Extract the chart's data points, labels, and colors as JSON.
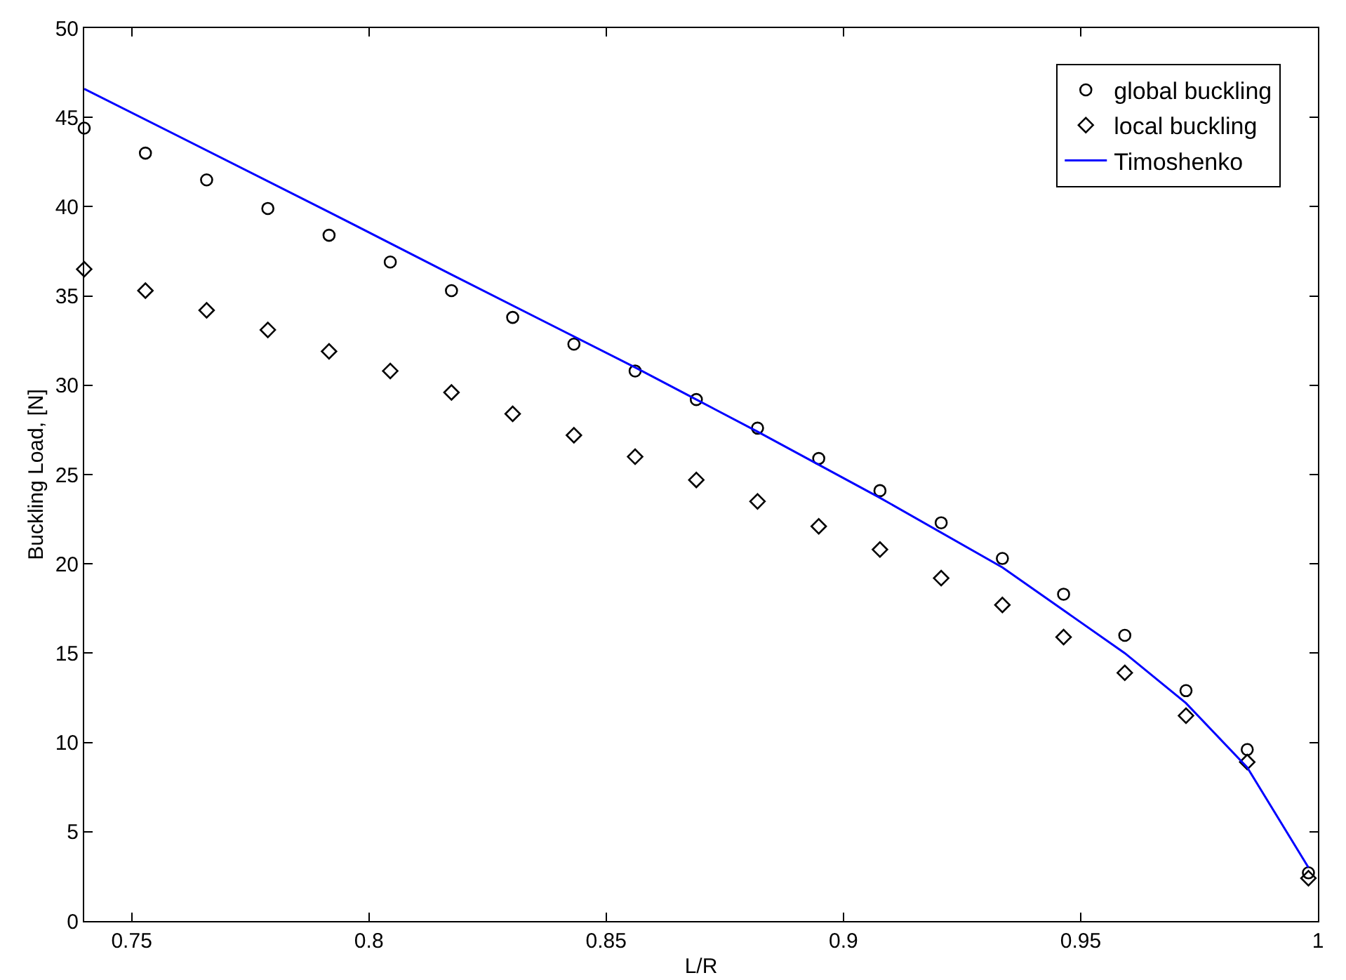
{
  "chart_data": {
    "type": "scatter",
    "xlabel": "L/R",
    "ylabel": "Buckling Load, [N]",
    "x": [
      0.74,
      0.7529,
      0.7658,
      0.7787,
      0.7916,
      0.8045,
      0.8174,
      0.8303,
      0.8432,
      0.8561,
      0.869,
      0.8819,
      0.8948,
      0.9077,
      0.9206,
      0.9335,
      0.9464,
      0.9593,
      0.9722,
      0.9851,
      0.998
    ],
    "series": [
      {
        "name": "global buckling",
        "color": "#000000",
        "marker": "circle",
        "values": [
          44.4,
          43,
          41.5,
          39.9,
          38.4,
          36.9,
          35.3,
          33.8,
          32.3,
          30.8,
          29.2,
          27.6,
          25.9,
          24.1,
          22.3,
          20.3,
          18.3,
          16,
          12.9,
          9.6,
          2.7
        ]
      },
      {
        "name": "local buckling",
        "color": "#000000",
        "marker": "diamond",
        "values": [
          36.5,
          35.3,
          34.2,
          33.1,
          31.9,
          30.8,
          29.6,
          28.4,
          27.2,
          26,
          24.7,
          23.5,
          22.1,
          20.8,
          19.2,
          17.7,
          15.9,
          13.9,
          11.5,
          8.9,
          2.4
        ]
      },
      {
        "name": "Timoshenko",
        "type": "line",
        "color": "#0000ff",
        "marker": "none",
        "line_style": "solid",
        "x": [
          0.74,
          0.7916,
          0.8174,
          0.8561,
          0.869,
          0.8819,
          0.9077,
          0.9335,
          0.9593,
          0.9722,
          0.9851,
          0.998
        ],
        "values": [
          46.6,
          39.7,
          36.2,
          31,
          29.2,
          27.4,
          23.7,
          19.8,
          15,
          12.2,
          8.6,
          3
        ]
      }
    ],
    "xlim": [
      0.74,
      1.0
    ],
    "xticks": [
      0.75,
      0.8,
      0.85,
      0.9,
      0.95,
      1
    ],
    "ylim": [
      0,
      50
    ],
    "yticks": [
      0,
      5,
      10,
      15,
      20,
      25,
      30,
      35,
      40,
      45,
      50
    ],
    "grid": false,
    "legend": "top right"
  }
}
